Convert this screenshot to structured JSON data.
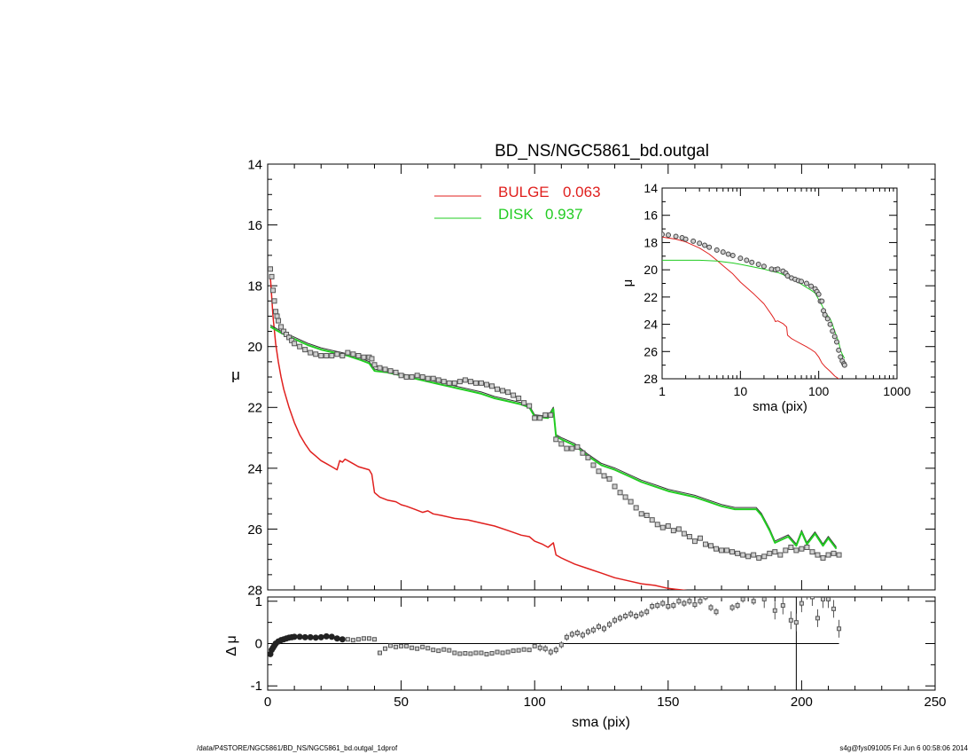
{
  "page": {
    "footer_left": "/data/P4STORE/NGC5861/BD_NS/NGC5861_bd.outgal_1dprof",
    "footer_right": "s4g@fys091005  Fri Jun  6 00:58:06 2014"
  },
  "colors": {
    "bulge": "#e0201e",
    "disk": "#22cc22",
    "data": "#555555",
    "axes": "#000000"
  },
  "chart_data": [
    {
      "id": "main",
      "type": "line",
      "title": "BD_NS/NGC5861_bd.outgal",
      "xlabel": "",
      "ylabel": "μ",
      "xlim": [
        0,
        250
      ],
      "ylim": [
        28,
        14
      ],
      "yticks": [
        14,
        16,
        18,
        20,
        22,
        24,
        26,
        28
      ],
      "legend": [
        {
          "label": "BULGE",
          "value": "0.063",
          "color": "#e0201e"
        },
        {
          "label": "DISK",
          "value": "0.937",
          "color": "#22cc22"
        }
      ],
      "series": [
        {
          "name": "BULGE",
          "style": "line",
          "x": [
            1,
            2,
            3,
            4,
            5,
            6,
            8,
            10,
            12,
            14,
            16,
            18,
            20,
            22,
            24,
            26,
            27,
            28,
            29,
            30,
            32,
            34,
            36,
            38,
            39,
            40,
            42,
            45,
            48,
            50,
            52,
            55,
            58,
            60,
            62,
            65,
            70,
            75,
            80,
            85,
            90,
            95,
            98,
            100,
            103,
            105,
            107,
            108,
            110,
            115,
            120,
            125,
            130,
            135,
            140,
            145,
            150,
            155,
            160,
            163
          ],
          "y": [
            17.7,
            19.0,
            19.9,
            20.5,
            21.0,
            21.4,
            22.0,
            22.5,
            22.9,
            23.2,
            23.45,
            23.6,
            23.75,
            23.85,
            23.95,
            24.05,
            23.75,
            23.8,
            23.7,
            23.75,
            23.85,
            23.95,
            24.0,
            24.05,
            24.2,
            24.8,
            24.95,
            25.05,
            25.1,
            25.2,
            25.25,
            25.35,
            25.45,
            25.4,
            25.5,
            25.55,
            25.65,
            25.7,
            25.8,
            25.9,
            26.05,
            26.2,
            26.25,
            26.4,
            26.5,
            26.6,
            26.45,
            26.85,
            26.95,
            27.15,
            27.3,
            27.45,
            27.6,
            27.7,
            27.8,
            27.85,
            27.95,
            28.0,
            28.05,
            28.1
          ]
        },
        {
          "name": "DISK",
          "style": "line",
          "x": [
            1,
            5,
            10,
            15,
            20,
            25,
            30,
            35,
            38,
            40,
            45,
            50,
            55,
            60,
            65,
            70,
            75,
            80,
            85,
            90,
            95,
            98,
            100,
            105,
            107,
            108,
            110,
            115,
            120,
            125,
            130,
            135,
            140,
            145,
            150,
            155,
            160,
            165,
            170,
            175,
            180,
            183,
            185,
            188,
            190,
            195,
            198,
            200,
            202,
            205,
            208,
            210,
            213
          ],
          "y": [
            19.35,
            19.55,
            19.75,
            19.95,
            20.1,
            20.2,
            20.3,
            20.45,
            20.55,
            20.8,
            20.85,
            20.95,
            21.05,
            21.15,
            21.25,
            21.35,
            21.45,
            21.55,
            21.7,
            21.8,
            21.9,
            22.0,
            22.3,
            22.35,
            22.05,
            22.95,
            23.05,
            23.25,
            23.6,
            23.9,
            24.05,
            24.25,
            24.45,
            24.6,
            24.75,
            24.85,
            24.95,
            25.1,
            25.25,
            25.35,
            25.35,
            25.35,
            25.55,
            26.05,
            26.45,
            26.25,
            26.55,
            26.1,
            26.5,
            26.15,
            26.55,
            26.3,
            26.65
          ]
        },
        {
          "name": "data",
          "style": "points",
          "x": [
            1,
            1.5,
            2,
            2.5,
            3,
            3.5,
            4,
            5,
            6,
            7,
            8,
            9,
            10,
            12,
            14,
            16,
            18,
            20,
            22,
            24,
            26,
            28,
            30,
            32,
            34,
            36,
            38,
            39,
            40,
            42,
            44,
            46,
            48,
            50,
            52,
            54,
            56,
            58,
            60,
            62,
            64,
            66,
            68,
            70,
            72,
            74,
            76,
            78,
            80,
            82,
            84,
            86,
            88,
            90,
            92,
            94,
            96,
            98,
            100,
            102,
            104,
            106,
            108,
            110,
            112,
            114,
            116,
            118,
            120,
            122,
            124,
            126,
            128,
            130,
            132,
            134,
            136,
            138,
            140,
            142,
            144,
            146,
            148,
            150,
            152,
            154,
            156,
            158,
            160,
            162,
            164,
            166,
            168,
            170,
            172,
            174,
            176,
            178,
            180,
            182,
            184,
            186,
            188,
            190,
            192,
            194,
            196,
            198,
            200,
            202,
            204,
            206,
            208,
            210,
            212,
            214
          ],
          "y": [
            17.45,
            17.7,
            18.15,
            18.5,
            18.85,
            19.0,
            19.15,
            19.35,
            19.5,
            19.6,
            19.7,
            19.8,
            19.9,
            20.0,
            20.1,
            20.2,
            20.25,
            20.3,
            20.3,
            20.3,
            20.25,
            20.3,
            20.2,
            20.25,
            20.3,
            20.35,
            20.35,
            20.4,
            20.6,
            20.7,
            20.75,
            20.8,
            20.85,
            20.95,
            21.0,
            21.0,
            20.95,
            21.0,
            21.05,
            21.05,
            21.1,
            21.15,
            21.2,
            21.2,
            21.15,
            21.1,
            21.15,
            21.2,
            21.2,
            21.25,
            21.3,
            21.4,
            21.45,
            21.5,
            21.6,
            21.7,
            21.85,
            21.95,
            22.35,
            22.35,
            22.25,
            22.25,
            23.05,
            23.2,
            23.35,
            23.35,
            23.3,
            23.5,
            23.65,
            23.9,
            24.1,
            24.25,
            24.35,
            24.6,
            24.8,
            24.95,
            25.1,
            25.3,
            25.5,
            25.55,
            25.7,
            25.85,
            25.95,
            25.9,
            26.05,
            26.0,
            26.15,
            26.25,
            26.4,
            26.3,
            26.5,
            26.55,
            26.65,
            26.7,
            26.7,
            26.75,
            26.8,
            26.85,
            26.9,
            26.85,
            26.95,
            26.9,
            26.8,
            26.75,
            26.85,
            26.7,
            26.6,
            26.7,
            26.65,
            26.6,
            26.75,
            26.85,
            26.95,
            26.85,
            26.8,
            26.85
          ]
        }
      ]
    },
    {
      "id": "residual",
      "type": "scatter",
      "xlabel": "sma (pix)",
      "ylabel": "Δ μ",
      "xlim": [
        0,
        250
      ],
      "ylim": [
        -1.1,
        1.1
      ],
      "yticks": [
        1,
        0,
        -1
      ],
      "xticks": [
        0,
        50,
        100,
        150,
        200,
        250
      ],
      "vline_x": 198,
      "hline_y": 0,
      "series": [
        {
          "name": "residual",
          "style": "points",
          "x": [
            1,
            1.5,
            2,
            2.5,
            3,
            4,
            5,
            6,
            7,
            8,
            9,
            10,
            12,
            14,
            16,
            18,
            20,
            22,
            24,
            26,
            28,
            30,
            32,
            34,
            36,
            38,
            40,
            42,
            44,
            46,
            48,
            50,
            52,
            54,
            56,
            58,
            60,
            62,
            64,
            66,
            68,
            70,
            72,
            74,
            76,
            78,
            80,
            82,
            84,
            86,
            88,
            90,
            92,
            94,
            96,
            98,
            100,
            102,
            104,
            106,
            108,
            110,
            112,
            114,
            116,
            118,
            120,
            122,
            124,
            126,
            128,
            130,
            132,
            134,
            136,
            138,
            140,
            142,
            144,
            146,
            148,
            150,
            152,
            154,
            156,
            158,
            160,
            162,
            164,
            166,
            168,
            170,
            172,
            174,
            176,
            178,
            180,
            182,
            186,
            190,
            193,
            196,
            198,
            200,
            202,
            204,
            206,
            208,
            210,
            212,
            214
          ],
          "y": [
            -0.25,
            -0.15,
            -0.1,
            -0.05,
            0.0,
            0.05,
            0.08,
            0.1,
            0.12,
            0.14,
            0.15,
            0.16,
            0.16,
            0.15,
            0.15,
            0.14,
            0.15,
            0.17,
            0.16,
            0.12,
            0.1,
            0.1,
            0.08,
            0.1,
            0.12,
            0.12,
            0.1,
            -0.22,
            -0.12,
            -0.05,
            -0.08,
            -0.06,
            -0.06,
            -0.1,
            -0.12,
            -0.08,
            -0.11,
            -0.15,
            -0.17,
            -0.14,
            -0.16,
            -0.22,
            -0.24,
            -0.23,
            -0.24,
            -0.22,
            -0.22,
            -0.25,
            -0.23,
            -0.2,
            -0.22,
            -0.2,
            -0.17,
            -0.16,
            -0.14,
            -0.15,
            -0.06,
            -0.1,
            -0.12,
            -0.2,
            -0.15,
            -0.03,
            0.15,
            0.22,
            0.25,
            0.2,
            0.28,
            0.32,
            0.4,
            0.35,
            0.45,
            0.55,
            0.6,
            0.65,
            0.7,
            0.65,
            0.7,
            0.75,
            0.88,
            0.9,
            0.95,
            0.88,
            0.9,
            1.0,
            0.95,
            1.0,
            0.92,
            1.0,
            1.1,
            0.85,
            0.75,
            1.15,
            1.2,
            0.85,
            0.9,
            1.05,
            1.15,
            1.0,
            1.05,
            0.78,
            0.9,
            0.55,
            0.5,
            0.95,
            1.25,
            1.1,
            0.6,
            1.05,
            1.05,
            0.82,
            0.35
          ]
        }
      ]
    },
    {
      "id": "inset",
      "type": "line",
      "xlabel": "sma (pix)",
      "ylabel": "μ",
      "xscale": "log",
      "xlim": [
        1,
        1000
      ],
      "ylim": [
        28,
        14
      ],
      "xticks": [
        1,
        10,
        100,
        1000
      ],
      "yticks": [
        14,
        16,
        18,
        20,
        22,
        24,
        26,
        28
      ],
      "series": [
        {
          "name": "BULGE",
          "style": "line",
          "x": [
            1,
            1.5,
            2,
            3,
            4,
            5,
            6,
            8,
            10,
            15,
            20,
            25,
            27,
            28,
            30,
            35,
            39,
            40,
            45,
            50,
            60,
            70,
            80,
            90,
            100,
            110,
            120,
            140,
            160,
            180,
            200,
            213
          ],
          "y": [
            17.6,
            17.75,
            17.95,
            18.4,
            18.85,
            19.3,
            19.7,
            20.3,
            20.9,
            21.8,
            22.5,
            23.3,
            23.6,
            23.8,
            23.75,
            23.95,
            24.2,
            24.8,
            25.05,
            25.2,
            25.45,
            25.65,
            25.85,
            26.05,
            26.4,
            26.85,
            27.1,
            27.45,
            27.8,
            28.0,
            28.1,
            28.2
          ]
        },
        {
          "name": "DISK",
          "style": "line",
          "x": [
            1,
            3,
            5,
            8,
            10,
            15,
            20,
            25,
            30,
            35,
            40,
            50,
            60,
            70,
            80,
            90,
            100,
            110,
            120,
            140,
            150,
            160,
            180,
            190,
            200,
            213
          ],
          "y": [
            19.3,
            19.3,
            19.35,
            19.5,
            19.6,
            19.8,
            19.95,
            20.1,
            20.2,
            20.35,
            20.55,
            20.8,
            21.05,
            21.3,
            21.5,
            21.7,
            22.2,
            22.6,
            23.1,
            23.6,
            24.0,
            24.5,
            25.3,
            25.9,
            26.2,
            26.5
          ]
        },
        {
          "name": "data",
          "style": "points",
          "x": [
            1,
            1.2,
            1.5,
            1.8,
            2,
            2.5,
            3,
            3.5,
            4,
            5,
            6,
            7,
            8,
            10,
            12,
            14,
            17,
            20,
            25,
            28,
            30,
            35,
            38,
            40,
            45,
            50,
            55,
            60,
            70,
            80,
            90,
            95,
            100,
            105,
            110,
            115,
            120,
            130,
            140,
            150,
            160,
            170,
            180,
            190,
            200,
            210,
            214
          ],
          "y": [
            17.4,
            17.45,
            17.55,
            17.65,
            17.75,
            17.9,
            18.05,
            18.2,
            18.35,
            18.55,
            18.7,
            18.85,
            18.95,
            19.15,
            19.3,
            19.45,
            19.6,
            19.75,
            19.95,
            20.0,
            19.95,
            20.1,
            20.25,
            20.45,
            20.6,
            20.7,
            20.8,
            20.85,
            21.0,
            21.2,
            21.4,
            21.6,
            21.8,
            22.3,
            22.3,
            23.0,
            23.3,
            23.6,
            24.0,
            24.5,
            24.9,
            25.3,
            25.9,
            26.4,
            26.7,
            26.9,
            27.0
          ]
        }
      ]
    }
  ]
}
